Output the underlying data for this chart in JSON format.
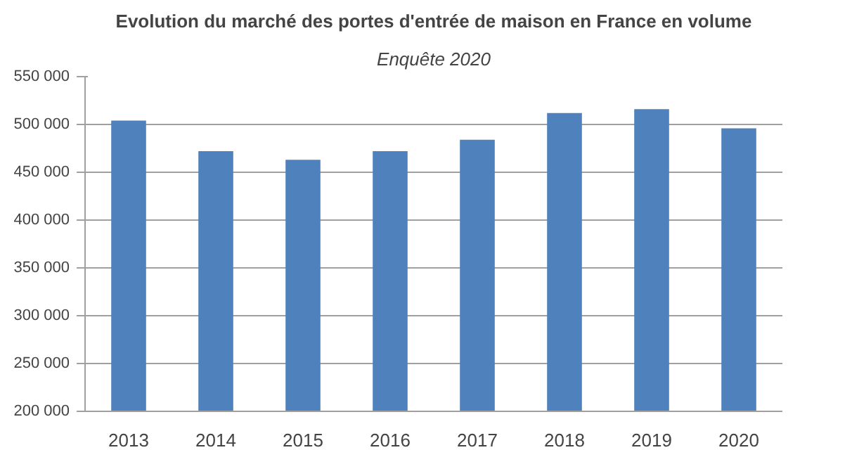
{
  "chart_data": {
    "type": "bar",
    "title": "Evolution du marché des portes d'entrée de maison en France en volume",
    "subtitle": "Enquête 2020",
    "categories": [
      "2013",
      "2014",
      "2015",
      "2016",
      "2017",
      "2018",
      "2019",
      "2020"
    ],
    "values": [
      504000,
      472000,
      463000,
      472000,
      484000,
      512000,
      516000,
      496000
    ],
    "color": "#4f81bd",
    "ylim": [
      200000,
      550000
    ],
    "yticks": [
      {
        "value": 200000,
        "label": "200 000"
      },
      {
        "value": 250000,
        "label": "250 000"
      },
      {
        "value": 300000,
        "label": "300 000"
      },
      {
        "value": 350000,
        "label": "350 000"
      },
      {
        "value": 400000,
        "label": "400 000"
      },
      {
        "value": 450000,
        "label": "450 000"
      },
      {
        "value": 500000,
        "label": "500 000"
      },
      {
        "value": 550000,
        "label": "550 000"
      }
    ],
    "grid": "y"
  }
}
